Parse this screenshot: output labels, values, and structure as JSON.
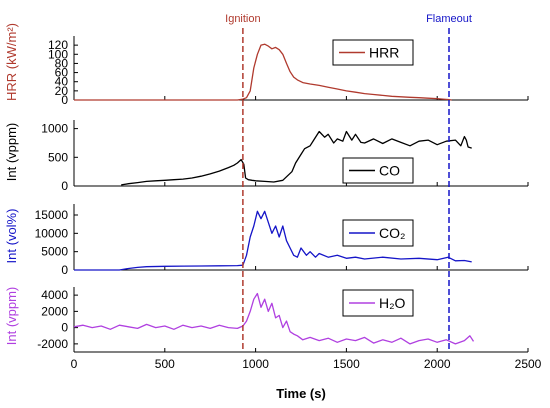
{
  "chart_data": {
    "type": "line",
    "xlabel": "Time (s)",
    "xlim": [
      0,
      2500
    ],
    "xticks": [
      0,
      500,
      1000,
      1500,
      2000,
      2500
    ],
    "colors": {
      "HRR": "#b03a2e",
      "CO": "#000000",
      "CO2": "#1515c8",
      "H2O": "#b040e0",
      "ignition": "#b03a2e",
      "flameout": "#1515c8"
    },
    "annotations": [
      {
        "label": "Ignition",
        "x": 930
      },
      {
        "label": "Flameout",
        "x": 2065
      }
    ],
    "panels": [
      {
        "ylabel": "HRR (kW/m²)",
        "legend": "HRR",
        "color_key": "HRR",
        "ylim": [
          0,
          140
        ],
        "yticks": [
          0,
          20,
          40,
          60,
          80,
          100,
          120
        ],
        "series": {
          "x": [
            0,
            900,
            930,
            950,
            970,
            990,
            1010,
            1030,
            1050,
            1070,
            1090,
            1110,
            1130,
            1150,
            1170,
            1190,
            1210,
            1230,
            1260,
            1300,
            1350,
            1400,
            1450,
            1500,
            1550,
            1600,
            1650,
            1700,
            1750,
            1800,
            1850,
            1900,
            1950,
            2000,
            2030,
            2060,
            2080
          ],
          "y": [
            0,
            0,
            2,
            5,
            20,
            70,
            100,
            120,
            122,
            118,
            112,
            115,
            110,
            100,
            80,
            62,
            50,
            44,
            38,
            35,
            32,
            28,
            24,
            20,
            17,
            14,
            12,
            10,
            8,
            7,
            6,
            5,
            4,
            3,
            2,
            1,
            0
          ]
        }
      },
      {
        "ylabel": "Int (vppm)",
        "legend": "CO",
        "color_key": "CO",
        "ylim": [
          0,
          1150
        ],
        "yticks": [
          0,
          500,
          1000
        ],
        "series": {
          "x": [
            260,
            300,
            350,
            400,
            450,
            500,
            550,
            600,
            650,
            700,
            750,
            800,
            850,
            880,
            900,
            920,
            935,
            945,
            960,
            980,
            1000,
            1050,
            1100,
            1150,
            1200,
            1220,
            1250,
            1270,
            1300,
            1320,
            1350,
            1380,
            1400,
            1430,
            1450,
            1480,
            1500,
            1530,
            1550,
            1580,
            1600,
            1650,
            1700,
            1750,
            1800,
            1850,
            1900,
            1950,
            2000,
            2050,
            2100,
            2130,
            2150,
            2160,
            2170,
            2190
          ],
          "y": [
            20,
            40,
            60,
            80,
            90,
            100,
            110,
            120,
            140,
            170,
            210,
            260,
            320,
            360,
            400,
            460,
            380,
            140,
            110,
            100,
            90,
            80,
            70,
            100,
            250,
            400,
            550,
            650,
            700,
            800,
            950,
            850,
            900,
            750,
            820,
            780,
            950,
            800,
            900,
            760,
            750,
            820,
            740,
            820,
            760,
            700,
            780,
            800,
            720,
            780,
            800,
            700,
            860,
            800,
            680,
            660
          ]
        }
      },
      {
        "ylabel": "Int (vol%)",
        "legend": "CO₂",
        "color_key": "CO2",
        "ylim": [
          0,
          18000
        ],
        "yticks": [
          0,
          5000,
          10000,
          15000
        ],
        "series": {
          "x": [
            0,
            250,
            300,
            350,
            400,
            500,
            600,
            700,
            800,
            900,
            930,
            950,
            970,
            990,
            1010,
            1030,
            1050,
            1070,
            1090,
            1110,
            1130,
            1150,
            1170,
            1190,
            1210,
            1230,
            1250,
            1280,
            1300,
            1330,
            1350,
            1400,
            1450,
            1500,
            1550,
            1600,
            1700,
            1800,
            1900,
            2000,
            2060,
            2100,
            2150,
            2190
          ],
          "y": [
            0,
            0,
            400,
            700,
            900,
            1000,
            1050,
            1100,
            1150,
            1200,
            1300,
            4000,
            9000,
            12000,
            16000,
            14000,
            16000,
            13000,
            10000,
            12000,
            9000,
            12000,
            8000,
            6000,
            4000,
            3500,
            6000,
            4000,
            5000,
            3500,
            4500,
            3500,
            4000,
            3200,
            3500,
            3000,
            3500,
            3000,
            3200,
            2800,
            3500,
            2500,
            2600,
            2200
          ]
        }
      },
      {
        "ylabel": "Int (vppm)",
        "legend": "H₂O",
        "color_key": "H2O",
        "ylim": [
          -3000,
          5000
        ],
        "yticks": [
          -2000,
          0,
          2000,
          4000
        ],
        "series": {
          "x": [
            0,
            50,
            100,
            150,
            200,
            250,
            300,
            350,
            400,
            450,
            500,
            550,
            600,
            650,
            700,
            750,
            800,
            850,
            900,
            930,
            950,
            970,
            990,
            1010,
            1030,
            1050,
            1070,
            1090,
            1110,
            1130,
            1150,
            1170,
            1190,
            1210,
            1230,
            1260,
            1300,
            1350,
            1400,
            1450,
            1500,
            1550,
            1600,
            1650,
            1700,
            1750,
            1800,
            1850,
            1900,
            1950,
            2000,
            2050,
            2100,
            2150,
            2180,
            2200
          ],
          "y": [
            100,
            300,
            0,
            200,
            -200,
            300,
            100,
            -100,
            400,
            0,
            200,
            -200,
            300,
            0,
            200,
            -100,
            300,
            0,
            -100,
            200,
            800,
            2000,
            3500,
            4200,
            2500,
            3500,
            2000,
            3000,
            1200,
            1500,
            0,
            800,
            -500,
            -800,
            -1000,
            -1500,
            -1200,
            -1600,
            -1300,
            -1800,
            -1400,
            -1600,
            -1200,
            -1900,
            -1500,
            -1800,
            -1300,
            -2000,
            -1600,
            -1400,
            -1800,
            -1500,
            -2000,
            -1600,
            -1000,
            -1700
          ]
        }
      }
    ]
  }
}
